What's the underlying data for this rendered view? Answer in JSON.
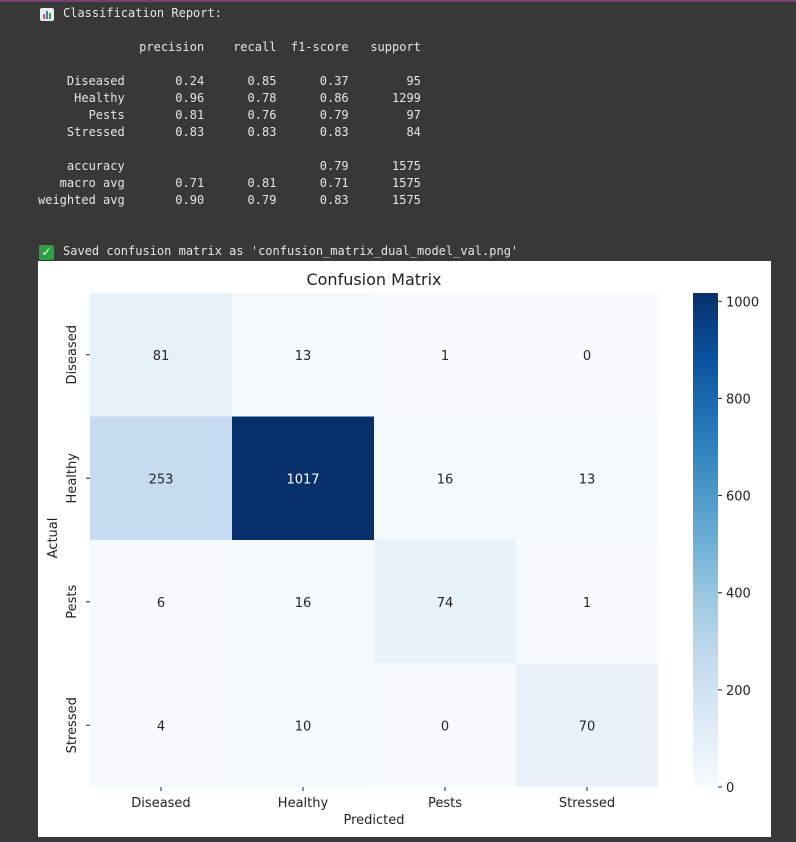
{
  "report": {
    "header": "Classification Report:",
    "columns_line": "              precision    recall  f1-score   support",
    "rows": [
      "    Diseased       0.24      0.85      0.37        95",
      "     Healthy       0.96      0.78      0.86      1299",
      "       Pests       0.81      0.76      0.79        97",
      "    Stressed       0.83      0.83      0.83        84",
      "",
      "    accuracy                           0.79      1575",
      "   macro avg       0.71      0.81      0.71      1575",
      "weighted avg       0.90      0.79      0.83      1575"
    ],
    "chart_icon": "bar-chart-icon",
    "saved_icon": "check-mark-icon",
    "saved_message": "Saved confusion matrix as 'confusion_matrix_dual_model_val.png'"
  },
  "colors": {
    "background": "#383838",
    "text": "#e6e6e6",
    "cmap": "Blues",
    "check_green": "#2ea043"
  },
  "chart_data": {
    "type": "heatmap",
    "title": "Confusion Matrix",
    "xlabel": "Predicted",
    "ylabel": "Actual",
    "x_categories": [
      "Diseased",
      "Healthy",
      "Pests",
      "Stressed"
    ],
    "y_categories": [
      "Diseased",
      "Healthy",
      "Pests",
      "Stressed"
    ],
    "values": [
      [
        81,
        13,
        1,
        0
      ],
      [
        253,
        1017,
        16,
        13
      ],
      [
        6,
        16,
        74,
        1
      ],
      [
        4,
        10,
        0,
        70
      ]
    ],
    "colorbar": {
      "range": [
        0,
        1017
      ],
      "ticks": [
        0,
        200,
        400,
        600,
        800,
        1000
      ]
    },
    "colormap": "Blues"
  }
}
